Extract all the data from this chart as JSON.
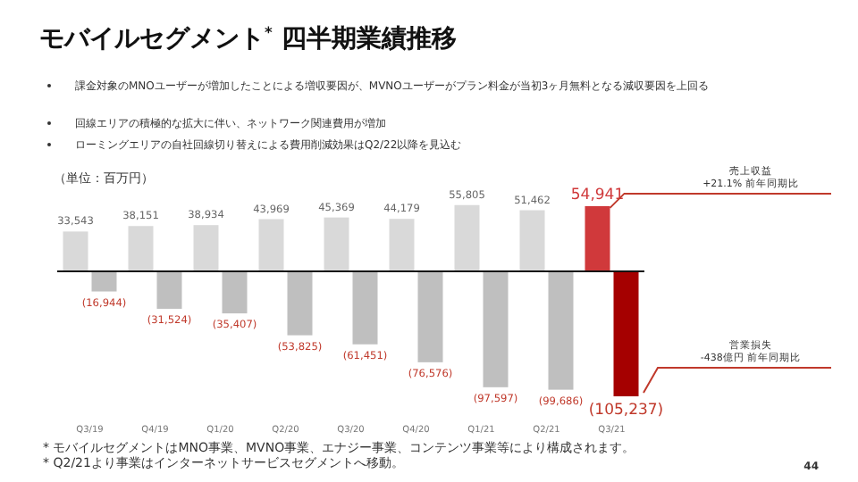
{
  "chart_data": {
    "type": "bar",
    "title": "モバイルセグメント$^{*}$ 四半期業績推移",
    "ylabel": "（単位：百万円）",
    "categories": [
      "Q3/19",
      "Q4/19",
      "Q1/20",
      "Q2/20",
      "Q3/20",
      "Q4/20",
      "Q1/21",
      "Q2/21",
      "Q3/21"
    ],
    "series": [
      {
        "colors": [
          "#d9d9d9",
          "#d9d9d9",
          "#d9d9d9",
          "#d9d9d9",
          "#d9d9d9",
          "#d9d9d9",
          "#d9d9d9",
          "#d9d9d9",
          "#d0393b"
        ],
        "values": [
          33543,
          38151,
          38934,
          43969,
          45369,
          44179,
          55805,
          51462,
          54941
        ],
        "value_labels": [
          "33,543",
          "38,151",
          "38,934",
          "43,969",
          "45,369",
          "44,179",
          "55,805",
          "51,462",
          "54,941"
        ]
      },
      {
        "colors": [
          "#bfbfbf",
          "#bfbfbf",
          "#bfbfbf",
          "#bfbfbf",
          "#bfbfbf",
          "#bfbfbf",
          "#bfbfbf",
          "#bfbfbf",
          "#a50000"
        ],
        "values": [
          -16944,
          -31524,
          -35407,
          -53825,
          -61451,
          -76576,
          -97597,
          -99686,
          -105237
        ],
        "value_labels": [
          "(16,944)",
          "(31,524)",
          "(35,407)",
          "(53,825)",
          "(61,451)",
          "(76,576)",
          "(97,597)",
          "(99,686)",
          "(105,237)"
        ]
      }
    ],
    "annotations": [
      "課金対象のMNOユーザーが増加したことによる増収要因が、MVNOユーザーがプラン料金が当初3ヶ月無料となる減収要因を上回る",
      "回線エリアの積極的な拡大に伴い、ネットワーク関連費用が増加",
      "ローミングエリアの自社回線切り替えによる費用削減効果はQ2/22以降を見込む",
      "* モバイルセグメントはMNO事業、MVNO事業、エナジー事業、コンテンツ事業等により構成されます。",
      "* Q2/21より事業はインターネットサービスセグメントへ移動。",
      "44",
      "営業損失\n-438億円 前年同期比",
      {
        "text": "売上収益\n+21.1% 前年同期比",
        "x": "Q3/21",
        "y": 54941
      }
    ]
  }
}
